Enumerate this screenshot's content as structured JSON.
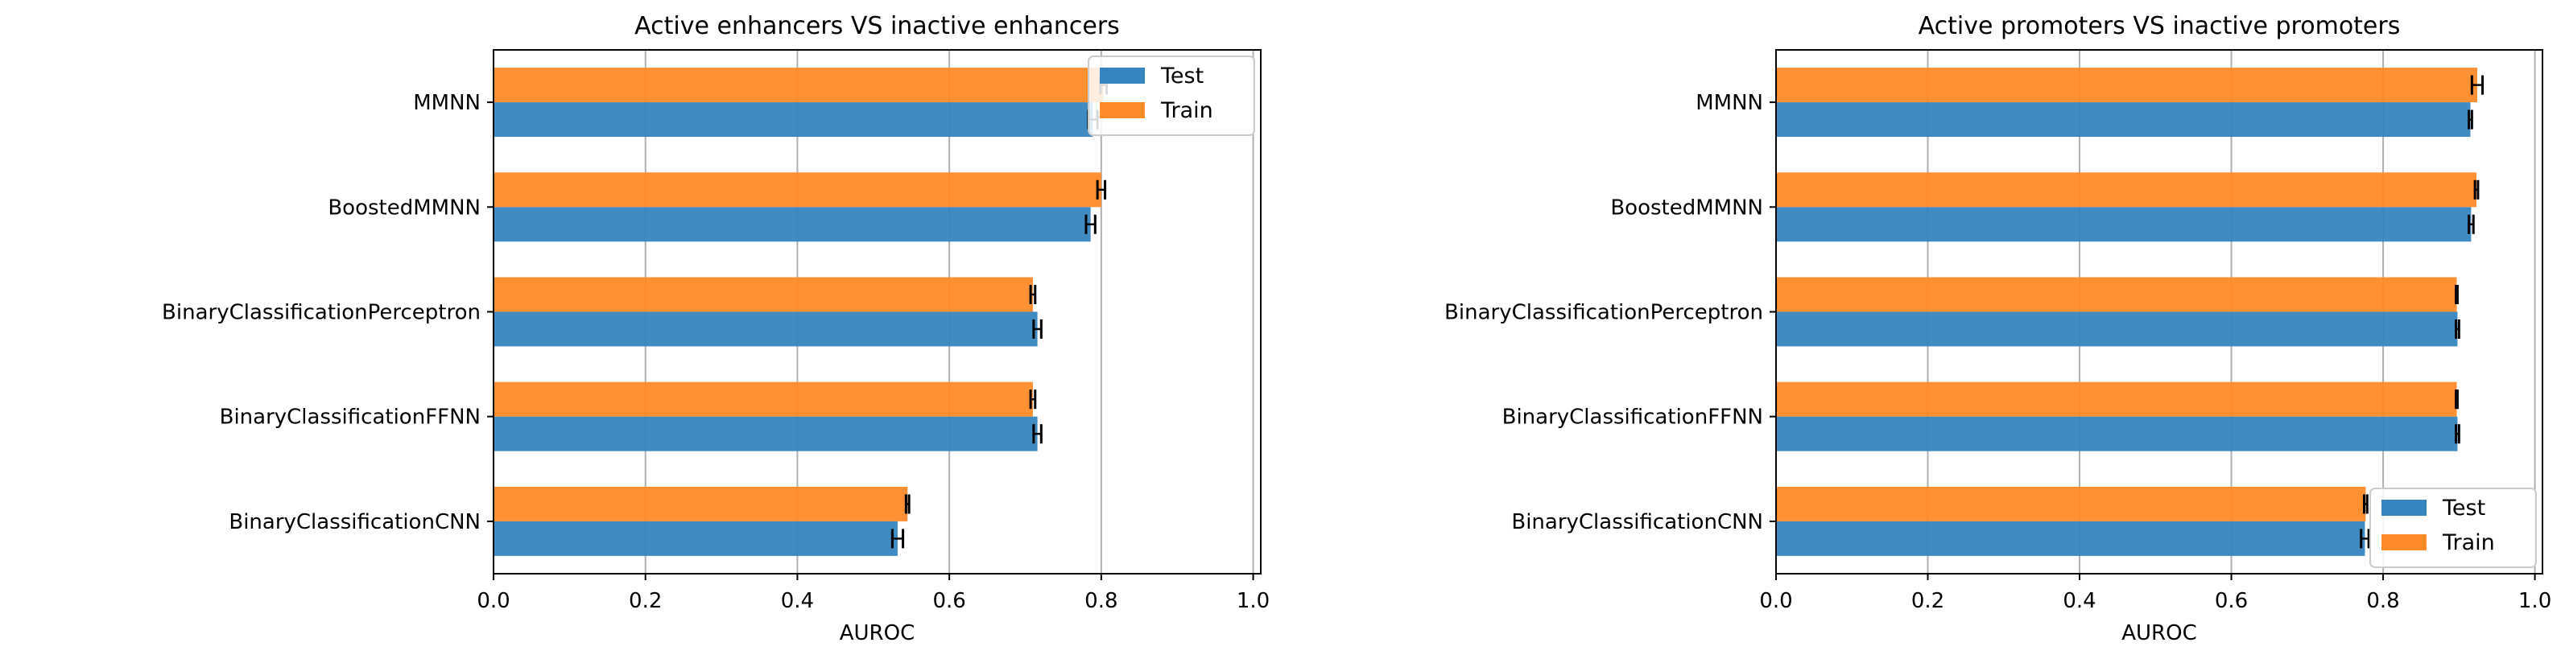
{
  "colors": {
    "test": "#3785c0",
    "train": "#ff8a28",
    "grid": "#b0b0b0",
    "error": "#000000"
  },
  "chart_data": [
    {
      "type": "bar",
      "orientation": "horizontal",
      "title": "Active enhancers VS inactive enhancers",
      "xlabel": "AUROC",
      "ylabel": "",
      "xlim": [
        0,
        1.01
      ],
      "xticks": [
        "0.0",
        "0.2",
        "0.4",
        "0.6",
        "0.8",
        "1.0"
      ],
      "grid": "vertical",
      "legend_position": "top-right",
      "categories": [
        "MMNN",
        "BoostedMMNN",
        "BinaryClassificationPerceptron",
        "BinaryClassificationFFNN",
        "BinaryClassificationCNN"
      ],
      "series": [
        {
          "name": "Test",
          "values": [
            0.789,
            0.786,
            0.716,
            0.716,
            0.532
          ],
          "errors": [
            0.006,
            0.006,
            0.005,
            0.005,
            0.007
          ]
        },
        {
          "name": "Train",
          "values": [
            0.803,
            0.8,
            0.71,
            0.71,
            0.545
          ],
          "errors": [
            0.004,
            0.005,
            0.003,
            0.003,
            0.002
          ]
        }
      ]
    },
    {
      "type": "bar",
      "orientation": "horizontal",
      "title": "Active promoters VS inactive promoters",
      "xlabel": "AUROC",
      "ylabel": "",
      "xlim": [
        0,
        1.01
      ],
      "xticks": [
        "0.0",
        "0.2",
        "0.4",
        "0.6",
        "0.8",
        "1.0"
      ],
      "grid": "vertical",
      "legend_position": "bottom-right",
      "categories": [
        "MMNN",
        "BoostedMMNN",
        "BinaryClassificationPerceptron",
        "BinaryClassificationFFNN",
        "BinaryClassificationCNN"
      ],
      "series": [
        {
          "name": "Test",
          "values": [
            0.915,
            0.916,
            0.898,
            0.898,
            0.776
          ],
          "errors": [
            0.002,
            0.003,
            0.002,
            0.002,
            0.005
          ]
        },
        {
          "name": "Train",
          "values": [
            0.924,
            0.923,
            0.897,
            0.897,
            0.777
          ],
          "errors": [
            0.007,
            0.002,
            0.001,
            0.001,
            0.002
          ]
        }
      ]
    }
  ]
}
